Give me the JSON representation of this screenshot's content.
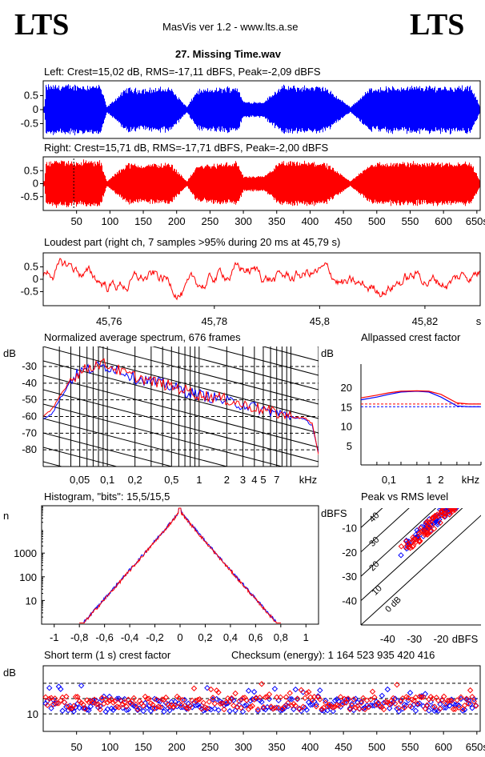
{
  "header": {
    "logo_left": "LTS",
    "logo_right": "LTS",
    "app_version": "MasVis ver 1.2 - www.lts.a.se",
    "file_title": "27. Missing Time.wav"
  },
  "colors": {
    "left": "#0000ff",
    "right": "#ff0000",
    "grid": "#000000"
  },
  "chart_data": [
    {
      "id": "left-waveform",
      "type": "line",
      "title": "Left: Crest=15,02 dB, RMS=-17,11 dBFS, Peak=-2,09 dBFS",
      "yticks": [
        "0.5",
        "0",
        "-0.5"
      ],
      "ylim": [
        -1,
        1
      ],
      "duration_s": 655,
      "envelope": {
        "t": [
          0,
          2,
          3,
          25,
          45,
          85,
          95,
          125,
          140,
          190,
          215,
          230,
          290,
          300,
          330,
          355,
          420,
          445,
          460,
          490,
          560,
          600,
          640,
          655
        ],
        "amp": [
          0.12,
          0.12,
          0.95,
          0.95,
          0.95,
          0.95,
          0.1,
          0.85,
          0.8,
          0.85,
          0.1,
          0.75,
          0.9,
          0.3,
          0.3,
          0.9,
          0.9,
          0.4,
          0.1,
          0.85,
          0.9,
          0.9,
          0.9,
          0.1
        ]
      }
    },
    {
      "id": "right-waveform",
      "type": "line",
      "title": "Right: Crest=15,71 dB, RMS=-17,71 dBFS, Peak=-2,00 dBFS",
      "yticks": [
        "0.5",
        "0",
        "-0.5"
      ],
      "ylim": [
        -1,
        1
      ],
      "duration_s": 655,
      "xticks": [
        "50",
        "100",
        "150",
        "200",
        "250",
        "300",
        "350",
        "400",
        "450",
        "500",
        "550",
        "600",
        "650s"
      ],
      "marker_s": 45.79,
      "envelope": {
        "t": [
          0,
          2,
          3,
          25,
          45,
          85,
          95,
          125,
          140,
          190,
          215,
          230,
          290,
          300,
          330,
          355,
          420,
          445,
          460,
          490,
          560,
          600,
          640,
          655
        ],
        "amp": [
          0.12,
          0.12,
          0.95,
          0.95,
          0.95,
          0.95,
          0.1,
          0.85,
          0.8,
          0.85,
          0.1,
          0.75,
          0.9,
          0.3,
          0.3,
          0.9,
          0.9,
          0.4,
          0.1,
          0.85,
          0.9,
          0.9,
          0.9,
          0.1
        ]
      }
    },
    {
      "id": "loudest-part",
      "type": "line",
      "title": "Loudest part (right ch, 7 samples >95% during 20 ms at 45,79 s)",
      "yticks": [
        "0.5",
        "0",
        "-0.5"
      ],
      "xticks": [
        "45,76",
        "45,78",
        "45,8",
        "45,82",
        "s"
      ],
      "xlim": [
        45.7475,
        45.8305
      ],
      "ylim": [
        -1,
        1
      ]
    },
    {
      "id": "avg-spectrum",
      "type": "line",
      "title": "Normalized average spectrum, 676 frames",
      "ylabel": "dB",
      "yticks": [
        "-30",
        "-40",
        "-50",
        "-60",
        "-70",
        "-80"
      ],
      "xticks": [
        "0,05",
        "0,1",
        "0,2",
        "0,5",
        "1",
        "2",
        "3",
        "4",
        "5",
        "7",
        "kHz"
      ],
      "xlim_khz": [
        0.02,
        20
      ],
      "ylim": [
        -90,
        -18
      ],
      "points_khz": [
        0.02,
        0.025,
        0.03,
        0.04,
        0.05,
        0.06,
        0.08,
        0.1,
        0.15,
        0.2,
        0.3,
        0.5,
        0.7,
        1,
        2,
        3,
        5,
        7,
        10,
        14,
        17,
        20
      ],
      "left_db": [
        -61,
        -58,
        -50,
        -38,
        -33,
        -32,
        -30,
        -30,
        -33,
        -37,
        -39,
        -42,
        -45,
        -47,
        -51,
        -53,
        -56,
        -58,
        -60,
        -62,
        -65,
        -82
      ],
      "right_db": [
        -60,
        -56,
        -48,
        -37,
        -34,
        -31,
        -28,
        -29,
        -34,
        -36,
        -39,
        -42,
        -44,
        -47,
        -50,
        -53,
        -56,
        -58,
        -60,
        -61,
        -64,
        -83
      ]
    },
    {
      "id": "allpassed-crest",
      "type": "line",
      "title": "Allpassed crest factor",
      "ylabel": "dB",
      "yticks": [
        "20",
        "15",
        "10",
        "5"
      ],
      "xticks": [
        "0,1",
        "1",
        "2",
        "kHz"
      ],
      "ylim": [
        0,
        26
      ],
      "points_khz": [
        0.02,
        0.05,
        0.1,
        0.2,
        0.5,
        1,
        2,
        5,
        10,
        20
      ],
      "left_crest": [
        16.8,
        17.5,
        18.2,
        18.8,
        19.0,
        18.8,
        17.5,
        15.2,
        15.0,
        15.0
      ],
      "right_crest": [
        17.3,
        18.0,
        18.6,
        19.0,
        19.1,
        19.0,
        18.2,
        16.0,
        15.7,
        15.7
      ],
      "left_avg": 15.02,
      "right_avg": 15.71
    },
    {
      "id": "histogram",
      "type": "line",
      "title": "Histogram, \"bits\": 15,5/15,5",
      "ylabel": "n",
      "yticks": [
        "1000",
        "100",
        "10"
      ],
      "xticks": [
        "-1",
        "-0,8",
        "-0,6",
        "-0,4",
        "-0,2",
        "0",
        "0,2",
        "0,4",
        "0,6",
        "0,8",
        "1"
      ],
      "xlim": [
        -1.1,
        1.1
      ],
      "peak_log10": 4.8,
      "cutoff": 0.8
    },
    {
      "id": "peak-vs-rms",
      "type": "scatter",
      "title": "Peak vs RMS level",
      "ylabel": "dBFS",
      "xlabel": "dBFS",
      "yticks": [
        "-10",
        "-20",
        "-30",
        "-40"
      ],
      "xticks": [
        "-40",
        "-30",
        "-20"
      ],
      "xlim": [
        -50,
        -5
      ],
      "ylim": [
        -50,
        -2
      ],
      "diag_labels": [
        "40",
        "30",
        "20",
        "10",
        "0 dB"
      ]
    },
    {
      "id": "short-term-crest",
      "type": "scatter",
      "title": "Short term (1 s) crest factor",
      "checksum_label": "Checksum (energy):  1 164 523 935 420 416",
      "ylabel": "dB",
      "yticks": [
        "10"
      ],
      "xticks": [
        "50",
        "100",
        "150",
        "200",
        "250",
        "300",
        "350",
        "400",
        "450",
        "500",
        "550",
        "600",
        "650s"
      ],
      "ylim": [
        0,
        30
      ]
    }
  ]
}
